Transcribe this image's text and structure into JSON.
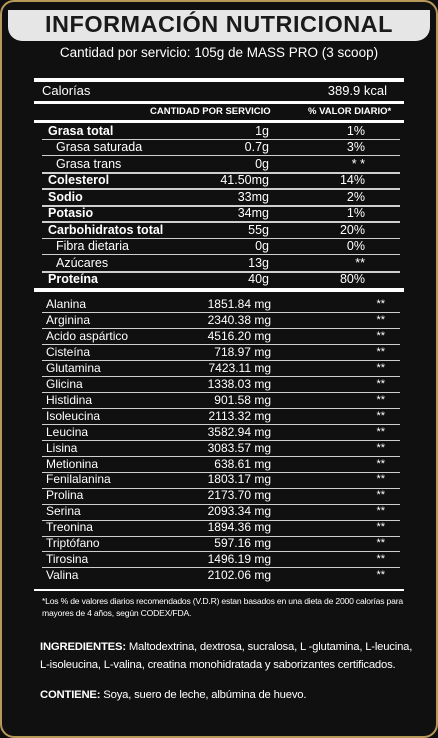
{
  "header": {
    "title": "INFORMACIÓN NUTRICIONAL",
    "serving": "Cantidad por servicio: 105g de MASS PRO (3 scoop)"
  },
  "calories": {
    "label": "Calorías",
    "value": "389.9 kcal"
  },
  "columns": {
    "amount": "CANTIDAD POR SERVICIO",
    "daily": "% VALOR DIARIO*"
  },
  "nutrients": [
    {
      "name": "Grasa total",
      "amount": "1g",
      "daily": "1%",
      "bold": true
    },
    {
      "name": "Grasa saturada",
      "amount": "0.7g",
      "daily": "3%",
      "indent": true
    },
    {
      "name": "Grasa trans",
      "amount": "0g",
      "daily": "* *",
      "indent": true
    },
    {
      "name": "Colesterol",
      "amount": "41.50mg",
      "daily": "14%",
      "bold": true
    },
    {
      "name": "Sodio",
      "amount": "33mg",
      "daily": "2%",
      "bold": true
    },
    {
      "name": "Potasio",
      "amount": "34mg",
      "daily": "1%",
      "bold": true
    },
    {
      "name": "Carbohidratos total",
      "amount": "55g",
      "daily": "20%",
      "bold": true
    },
    {
      "name": "Fibra dietaria",
      "amount": "0g",
      "daily": "0%",
      "indent": true
    },
    {
      "name": "Azúcares",
      "amount": "13g",
      "daily": "**",
      "indent": true
    },
    {
      "name": "Proteína",
      "amount": "40g",
      "daily": "80%",
      "bold": true
    }
  ],
  "aminoacids": [
    {
      "name": "Alanina",
      "amount": "1851.84 mg",
      "daily": "**"
    },
    {
      "name": "Arginina",
      "amount": "2340.38 mg",
      "daily": "**"
    },
    {
      "name": "Acido aspártico",
      "amount": "4516.20 mg",
      "daily": "**"
    },
    {
      "name": "Cisteína",
      "amount": "718.97 mg",
      "daily": "**"
    },
    {
      "name": "Glutamina",
      "amount": "7423.11 mg",
      "daily": "**"
    },
    {
      "name": "Glicina",
      "amount": "1338.03 mg",
      "daily": "**"
    },
    {
      "name": "Histidina",
      "amount": "901.58 mg",
      "daily": "**"
    },
    {
      "name": "Isoleucina",
      "amount": "2113.32 mg",
      "daily": "**"
    },
    {
      "name": "Leucina",
      "amount": "3582.94 mg",
      "daily": "**"
    },
    {
      "name": "Lisina",
      "amount": "3083.57 mg",
      "daily": "**"
    },
    {
      "name": "Metionina",
      "amount": "638.61 mg",
      "daily": "**"
    },
    {
      "name": "Fenilalanina",
      "amount": "1803.17 mg",
      "daily": "**"
    },
    {
      "name": "Prolina",
      "amount": "2173.70 mg",
      "daily": "**"
    },
    {
      "name": "Serina",
      "amount": "2093.34 mg",
      "daily": "**"
    },
    {
      "name": "Treonina",
      "amount": "1894.36 mg",
      "daily": "**"
    },
    {
      "name": "Triptófano",
      "amount": "597.16 mg",
      "daily": "**"
    },
    {
      "name": "Tirosina",
      "amount": "1496.19 mg",
      "daily": "**"
    },
    {
      "name": "Valina",
      "amount": "2102.06 mg",
      "daily": "**"
    }
  ],
  "footnote": "*Los % de valores diarios recomendados (V.D.R) estan basados en una dieta de 2000 calorías para mayores de 4 años, según CODEX/FDA.",
  "ingredients": {
    "label": "INGREDIENTES:",
    "text": " Maltodextrina, dextrosa, sucralosa, L -glutamina, L-leucina, L-isoleucina, L-valina, creatina monohidratada y saborizantes certificados."
  },
  "contains": {
    "label": "CONTIENE:",
    "text": " Soya, suero de leche, albúmina de huevo."
  },
  "colors": {
    "frame": "#b79a5a",
    "background": "#101010",
    "titlebar": "#e6e6e6",
    "text": "#ffffff"
  }
}
